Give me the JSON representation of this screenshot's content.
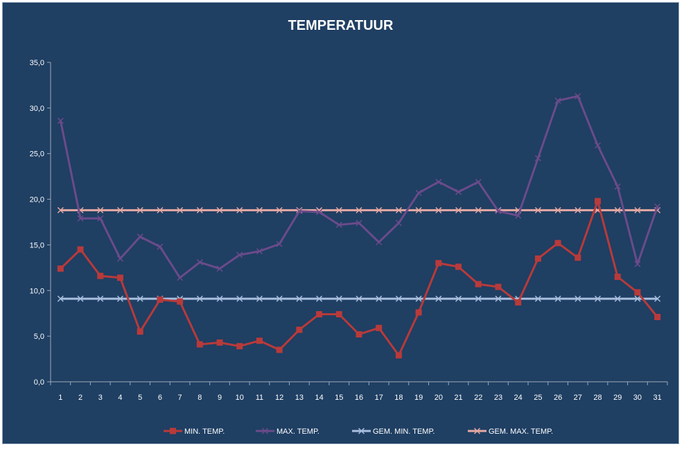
{
  "chart_data": {
    "type": "line",
    "title": "TEMPERATUUR",
    "xlabel": "",
    "ylabel": "",
    "ylim": [
      0,
      35
    ],
    "yticks": [
      "0,0",
      "5,0",
      "10,0",
      "15,0",
      "20,0",
      "25,0",
      "30,0",
      "35,0"
    ],
    "categories": [
      "1",
      "2",
      "3",
      "4",
      "5",
      "6",
      "7",
      "8",
      "9",
      "10",
      "11",
      "12",
      "13",
      "14",
      "15",
      "16",
      "17",
      "18",
      "19",
      "20",
      "21",
      "22",
      "23",
      "24",
      "25",
      "26",
      "27",
      "28",
      "29",
      "30",
      "31"
    ],
    "grid": false,
    "legend_position": "bottom",
    "series": [
      {
        "name": "MIN. TEMP.",
        "color": "#B83A3A",
        "marker": "square",
        "values": [
          12.4,
          14.5,
          11.6,
          11.4,
          5.5,
          9.0,
          8.8,
          4.1,
          4.3,
          3.9,
          4.5,
          3.5,
          5.7,
          7.4,
          7.4,
          5.2,
          5.9,
          2.9,
          7.6,
          13.0,
          12.6,
          10.7,
          10.4,
          8.7,
          13.5,
          15.2,
          13.6,
          19.8,
          11.5,
          9.8,
          7.1
        ]
      },
      {
        "name": "MAX. TEMP.",
        "color": "#6A4B8A",
        "marker": "x",
        "values": [
          28.6,
          17.9,
          17.9,
          13.5,
          15.9,
          14.8,
          11.4,
          13.1,
          12.4,
          13.9,
          14.3,
          15.1,
          18.7,
          18.6,
          17.2,
          17.4,
          15.3,
          17.4,
          20.7,
          21.9,
          20.8,
          21.9,
          18.7,
          18.2,
          24.5,
          30.8,
          31.3,
          25.9,
          21.4,
          12.9,
          19.2
        ]
      },
      {
        "name": "GEM. MIN. TEMP.",
        "color": "#A9BFDF",
        "marker": "x",
        "values": [
          9.1,
          9.1,
          9.1,
          9.1,
          9.1,
          9.1,
          9.1,
          9.1,
          9.1,
          9.1,
          9.1,
          9.1,
          9.1,
          9.1,
          9.1,
          9.1,
          9.1,
          9.1,
          9.1,
          9.1,
          9.1,
          9.1,
          9.1,
          9.1,
          9.1,
          9.1,
          9.1,
          9.1,
          9.1,
          9.1,
          9.1
        ]
      },
      {
        "name": "GEM. MAX. TEMP.",
        "color": "#E6A9A3",
        "marker": "x",
        "values": [
          18.8,
          18.8,
          18.8,
          18.8,
          18.8,
          18.8,
          18.8,
          18.8,
          18.8,
          18.8,
          18.8,
          18.8,
          18.8,
          18.8,
          18.8,
          18.8,
          18.8,
          18.8,
          18.8,
          18.8,
          18.8,
          18.8,
          18.8,
          18.8,
          18.8,
          18.8,
          18.8,
          18.8,
          18.8,
          18.8,
          18.8
        ]
      }
    ]
  },
  "colors": {
    "background": "#1F3F63",
    "axis": "#A0AAB8",
    "text": "#FFFFFF"
  }
}
